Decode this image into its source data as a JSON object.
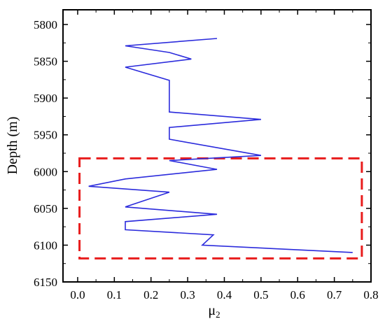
{
  "chart_data": {
    "type": "line",
    "title": "",
    "xlabel": "μ",
    "xlabel_subscript": "2",
    "ylabel": "Depth (m)",
    "xlim": [
      -0.04,
      0.8
    ],
    "ylim": [
      5780,
      6150
    ],
    "y_inverted": true,
    "x_ticks": [
      0.0,
      0.1,
      0.2,
      0.3,
      0.4,
      0.5,
      0.6,
      0.7,
      0.8
    ],
    "x_tick_labels": [
      "0.0",
      "0.1",
      "0.2",
      "0.3",
      "0.4",
      "0.5",
      "0.6",
      "0.7",
      "0.8"
    ],
    "y_ticks": [
      5800,
      5850,
      5900,
      5950,
      6000,
      6050,
      6100,
      6150
    ],
    "y_tick_labels": [
      "5800",
      "5850",
      "5900",
      "5950",
      "6000",
      "6050",
      "6100",
      "6150"
    ],
    "grid": false,
    "series": [
      {
        "color": "#2b2bdc",
        "x": [
          0.38,
          0.13,
          0.25,
          0.31,
          0.13,
          0.25,
          0.25,
          0.25,
          0.5,
          0.25,
          0.25,
          0.5,
          0.25,
          0.38,
          0.13,
          0.03,
          0.25,
          0.13,
          0.38,
          0.13,
          0.13,
          0.37,
          0.34,
          0.75
        ],
        "y": [
          5819,
          5829,
          5838,
          5847,
          5858,
          5876,
          5900,
          5919,
          5929,
          5940,
          5956,
          5978,
          5985,
          5997,
          6010,
          6020,
          6028,
          6048,
          6058,
          6068,
          6079,
          6086,
          6100,
          6110
        ]
      }
    ],
    "annotations": [
      {
        "type": "dashed-rectangle",
        "color": "#e81c1c",
        "x_range": [
          0.005,
          0.775
        ],
        "y_range": [
          5982,
          6118
        ]
      }
    ]
  }
}
